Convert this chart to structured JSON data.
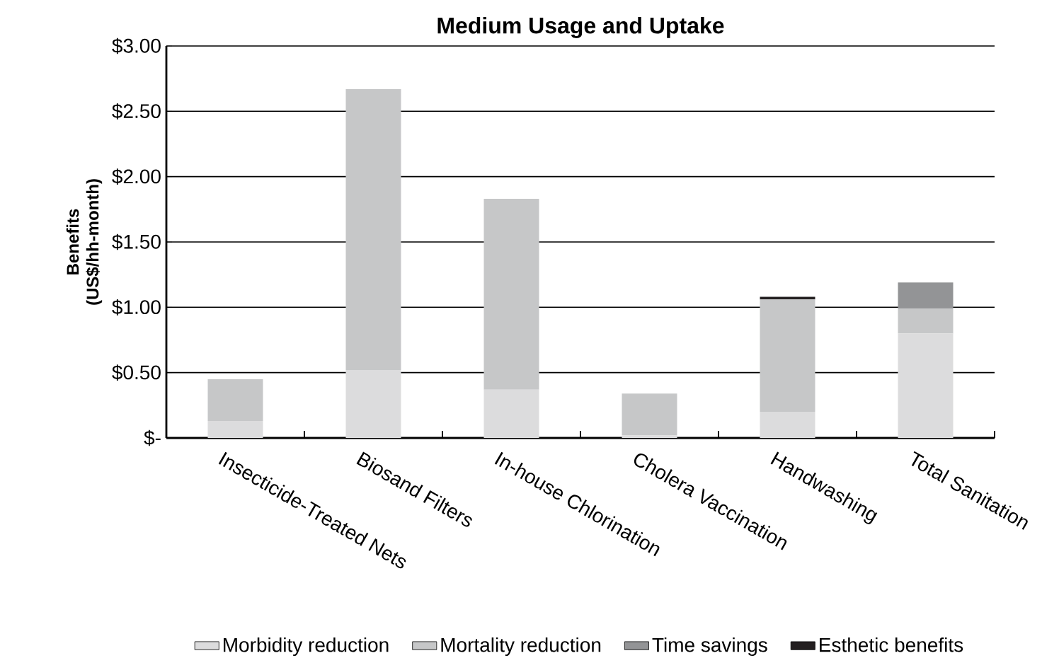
{
  "chart_data": {
    "type": "bar",
    "stacked": true,
    "title": "Medium Usage and Uptake",
    "ylabel": "Benefits (US$/hh-month)",
    "categories": [
      "Insecticide-Treated Nets",
      "Biosand Filters",
      "In-house Chlorination",
      "Cholera Vaccination",
      "Handwashing",
      "Total Sanitation"
    ],
    "series": [
      {
        "name": "Morbidity reduction",
        "color": "#dcdcdd",
        "values": [
          0.13,
          0.52,
          0.37,
          0.02,
          0.2,
          0.8
        ]
      },
      {
        "name": "Mortality reduction",
        "color": "#c6c7c8",
        "values": [
          0.32,
          2.15,
          1.46,
          0.32,
          0.86,
          0.19
        ]
      },
      {
        "name": "Time savings",
        "color": "#939496",
        "values": [
          0,
          0,
          0,
          0,
          0,
          0.2
        ]
      },
      {
        "name": "Esthetic benefits",
        "color": "#231f20",
        "values": [
          0,
          0,
          0,
          0,
          0.02,
          0
        ]
      }
    ],
    "ylim": [
      0,
      3
    ],
    "yticks": [
      {
        "value": 0,
        "label": "$-"
      },
      {
        "value": 0.5,
        "label": "$0.50"
      },
      {
        "value": 1,
        "label": "$1.00"
      },
      {
        "value": 1.5,
        "label": "$1.50"
      },
      {
        "value": 2,
        "label": "$2.00"
      },
      {
        "value": 2.5,
        "label": "$2.50"
      },
      {
        "value": 3,
        "label": "$3.00"
      }
    ],
    "grid": "y",
    "legend": "bottom"
  }
}
